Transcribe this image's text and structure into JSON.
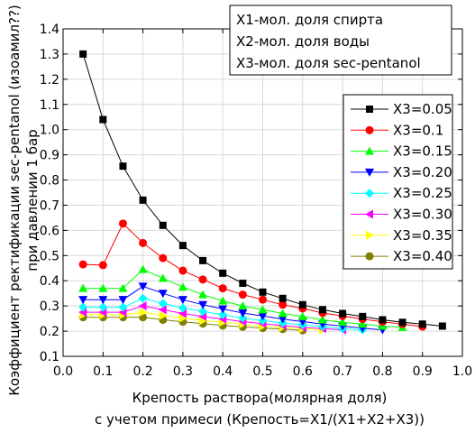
{
  "chart_data": {
    "type": "line",
    "title": "",
    "xlabel_line1": "Крепость раствора(молярная доля)",
    "xlabel_line2": "с учетом примеси (Крепость=X1/(X1+X2+X3))",
    "ylabel_line1": "Коэффициент ректификации sec-pentanol (изоамил??)",
    "ylabel_line2": "при давлении 1 бар",
    "xlim": [
      0.0,
      1.0
    ],
    "ylim": [
      0.1,
      1.4
    ],
    "xticks": [
      "0.0",
      "0.1",
      "0.2",
      "0.3",
      "0.4",
      "0.5",
      "0.6",
      "0.7",
      "0.8",
      "0.9",
      "1.0"
    ],
    "yticks": [
      "0.1",
      "0.2",
      "0.3",
      "0.4",
      "0.5",
      "0.6",
      "0.7",
      "0.8",
      "0.9",
      "1.0",
      "1.1",
      "1.2",
      "1.3",
      "1.4"
    ],
    "notes": [
      "X1-мол. доля спирта",
      "X2-мол. доля воды",
      "X3-мол. доля sec-pentanol"
    ],
    "legend_position": "right",
    "series": [
      {
        "name": "X3=0.05",
        "color": "#000000",
        "marker": "square",
        "x": [
          0.05,
          0.1,
          0.15,
          0.2,
          0.25,
          0.3,
          0.35,
          0.4,
          0.45,
          0.5,
          0.55,
          0.6,
          0.65,
          0.7,
          0.75,
          0.8,
          0.85,
          0.9,
          0.95
        ],
        "y": [
          1.3,
          1.04,
          0.855,
          0.72,
          0.62,
          0.54,
          0.48,
          0.43,
          0.39,
          0.355,
          0.33,
          0.305,
          0.285,
          0.27,
          0.258,
          0.245,
          0.235,
          0.228,
          0.22
        ]
      },
      {
        "name": "X3=0.1",
        "color": "#ff0000",
        "marker": "circle",
        "x": [
          0.05,
          0.1,
          0.15,
          0.2,
          0.25,
          0.3,
          0.35,
          0.4,
          0.45,
          0.5,
          0.55,
          0.6,
          0.65,
          0.7,
          0.75,
          0.8,
          0.85,
          0.9
        ],
        "y": [
          0.465,
          0.462,
          0.627,
          0.55,
          0.49,
          0.44,
          0.405,
          0.37,
          0.345,
          0.325,
          0.305,
          0.29,
          0.272,
          0.26,
          0.248,
          0.237,
          0.228,
          0.218
        ]
      },
      {
        "name": "X3=0.15",
        "color": "#00ff00",
        "marker": "triangle-up",
        "x": [
          0.05,
          0.1,
          0.15,
          0.2,
          0.25,
          0.3,
          0.35,
          0.4,
          0.45,
          0.5,
          0.55,
          0.6,
          0.65,
          0.7,
          0.75,
          0.8,
          0.85
        ],
        "y": [
          0.37,
          0.37,
          0.37,
          0.445,
          0.41,
          0.375,
          0.345,
          0.32,
          0.3,
          0.285,
          0.27,
          0.258,
          0.245,
          0.235,
          0.228,
          0.22,
          0.215
        ]
      },
      {
        "name": "X3=0.20",
        "color": "#0000ff",
        "marker": "triangle-down",
        "x": [
          0.05,
          0.1,
          0.15,
          0.2,
          0.25,
          0.3,
          0.35,
          0.4,
          0.45,
          0.5,
          0.55,
          0.6,
          0.65,
          0.7,
          0.75,
          0.8
        ],
        "y": [
          0.325,
          0.325,
          0.325,
          0.378,
          0.35,
          0.325,
          0.305,
          0.288,
          0.272,
          0.26,
          0.248,
          0.238,
          0.228,
          0.22,
          0.212,
          0.205
        ]
      },
      {
        "name": "X3=0.25",
        "color": "#00ffff",
        "marker": "diamond",
        "x": [
          0.05,
          0.1,
          0.15,
          0.2,
          0.25,
          0.3,
          0.35,
          0.4,
          0.45,
          0.5,
          0.55,
          0.6,
          0.65,
          0.7,
          0.75
        ],
        "y": [
          0.295,
          0.295,
          0.295,
          0.33,
          0.31,
          0.292,
          0.278,
          0.265,
          0.252,
          0.242,
          0.232,
          0.225,
          0.218,
          0.21,
          0.205
        ]
      },
      {
        "name": "X3=0.30",
        "color": "#ff00ff",
        "marker": "triangle-left",
        "x": [
          0.05,
          0.1,
          0.15,
          0.2,
          0.25,
          0.3,
          0.35,
          0.4,
          0.45,
          0.5,
          0.55,
          0.6,
          0.65,
          0.7
        ],
        "y": [
          0.275,
          0.275,
          0.275,
          0.3,
          0.285,
          0.27,
          0.258,
          0.248,
          0.238,
          0.23,
          0.222,
          0.215,
          0.21,
          0.205
        ]
      },
      {
        "name": "X3=0.35",
        "color": "#ffff00",
        "marker": "triangle-right",
        "x": [
          0.05,
          0.1,
          0.15,
          0.2,
          0.25,
          0.3,
          0.35,
          0.4,
          0.45,
          0.5,
          0.55,
          0.6,
          0.65
        ],
        "y": [
          0.265,
          0.265,
          0.265,
          0.275,
          0.262,
          0.252,
          0.242,
          0.235,
          0.228,
          0.22,
          0.215,
          0.21,
          0.205
        ]
      },
      {
        "name": "X3=0.40",
        "color": "#808000",
        "marker": "circle",
        "x": [
          0.05,
          0.1,
          0.15,
          0.2,
          0.25,
          0.3,
          0.35,
          0.4,
          0.45,
          0.5,
          0.55,
          0.6
        ],
        "y": [
          0.255,
          0.255,
          0.255,
          0.255,
          0.245,
          0.237,
          0.23,
          0.222,
          0.217,
          0.212,
          0.208,
          0.203
        ]
      }
    ]
  }
}
